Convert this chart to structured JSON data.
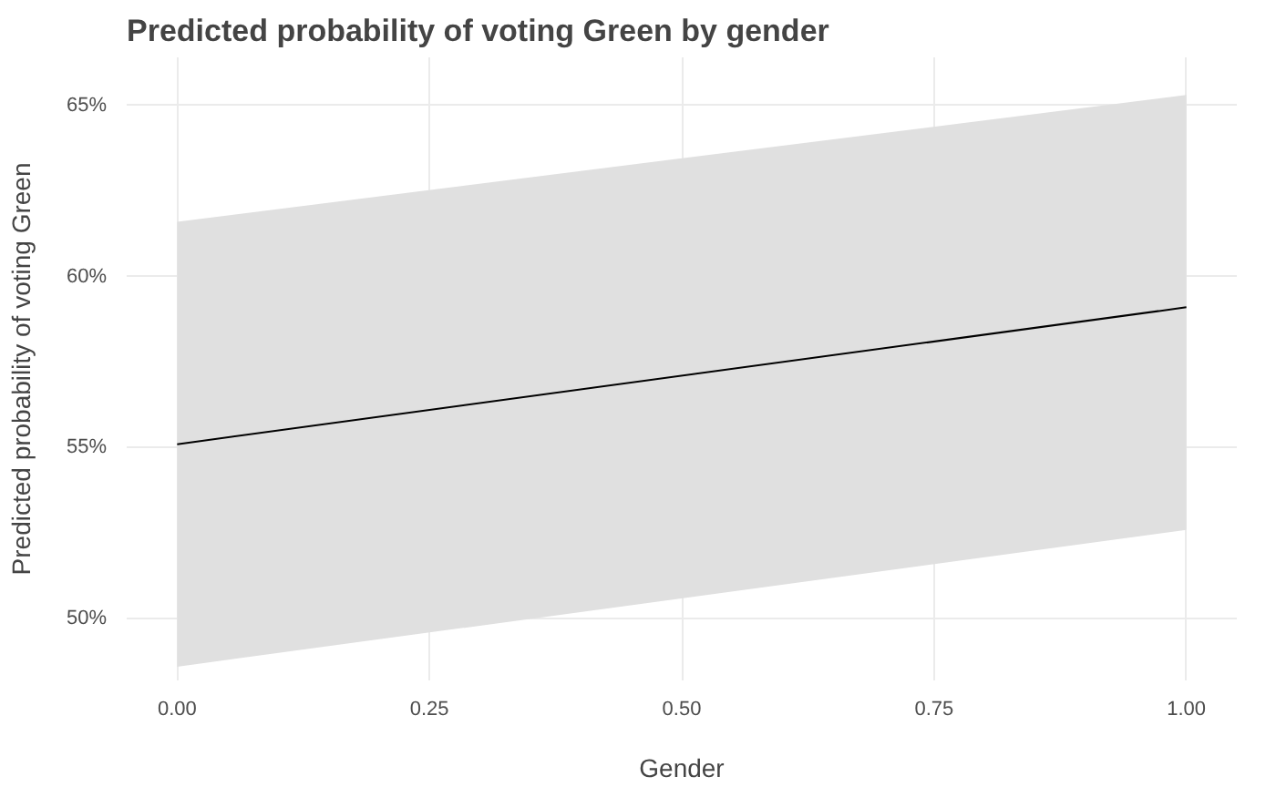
{
  "chart_data": {
    "type": "line",
    "title": "Predicted probability of voting Green by gender",
    "xlabel": "Gender",
    "ylabel": "Predicted probability of voting Green",
    "x": [
      0,
      1
    ],
    "series": [
      {
        "color": "#000000",
        "values": [
          55.1,
          59.1
        ],
        "lower": [
          48.6,
          52.6
        ],
        "upper": [
          61.6,
          65.3
        ]
      }
    ],
    "xlim": [
      -0.05,
      1.05
    ],
    "xticks": [
      {
        "value": 0,
        "label": "0.00"
      },
      {
        "value": 0.25,
        "label": "0.25"
      },
      {
        "value": 0.5,
        "label": "0.50"
      },
      {
        "value": 0.75,
        "label": "0.75"
      },
      {
        "value": 1,
        "label": "1.00"
      }
    ],
    "ylim": [
      48.2,
      66.4
    ],
    "yticks": [
      {
        "value": 50,
        "label": "50%"
      },
      {
        "value": 55,
        "label": "55%"
      },
      {
        "value": 60,
        "label": "60%"
      },
      {
        "value": 65,
        "label": "65%"
      }
    ],
    "grid": true,
    "line_style": "solid"
  }
}
